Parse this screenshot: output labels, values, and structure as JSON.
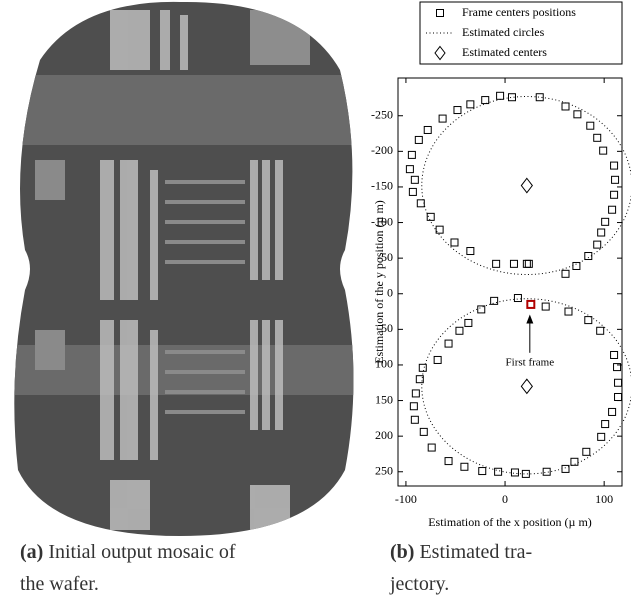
{
  "figure": {
    "caption_a": {
      "label": "(a)",
      "lines": [
        "Initial output mosaic of",
        "the wafer."
      ]
    },
    "caption_b": {
      "label": "(b)",
      "lines": [
        "Estimated tra-",
        "jectory."
      ]
    }
  },
  "chart_data": {
    "type": "scatter",
    "xlabel": "Estimation of the x position (µ m)",
    "ylabel": "Estimation of the y position (µ m)",
    "xlim": [
      -108,
      118
    ],
    "ylim": [
      -303,
      270
    ],
    "invert_y": true,
    "xticks": [
      -100,
      0,
      100
    ],
    "yticks": [
      -250,
      -200,
      -150,
      -100,
      -50,
      0,
      50,
      100,
      150,
      200,
      250
    ],
    "legend": "top",
    "series": [
      {
        "name": "Frame centers positions",
        "marker": "square",
        "color": "#000000",
        "highlight": {
          "index": 0,
          "color": "#b00000"
        },
        "x": [
          26,
          41,
          64,
          84,
          96,
          110,
          113,
          114,
          114,
          108,
          101,
          97,
          82,
          70,
          61,
          42,
          21,
          10,
          -7,
          -23,
          -41,
          -57,
          -74,
          -82,
          -91,
          -92,
          -90,
          -86,
          -83,
          -68,
          -57,
          -46,
          -37,
          -24,
          -11,
          13,
          61,
          72,
          84,
          93,
          97,
          101,
          108,
          110,
          111,
          110,
          99,
          93,
          86,
          73,
          61,
          35,
          7,
          -5,
          -20,
          -35,
          -48,
          -63,
          -78,
          -87,
          -94,
          -96,
          -91,
          -93,
          -85,
          -75,
          -66,
          -51,
          -35,
          -9,
          9,
          22,
          24
        ],
        "y": [
          15,
          18,
          25,
          37,
          52,
          86,
          103,
          125,
          145,
          166,
          183,
          201,
          222,
          236,
          246,
          250,
          253,
          251,
          250,
          249,
          243,
          235,
          216,
          194,
          177,
          158,
          140,
          120,
          104,
          93,
          70,
          52,
          41,
          22,
          10,
          6,
          -28,
          -39,
          -53,
          -69,
          -86,
          -101,
          -118,
          -139,
          -160,
          -180,
          -201,
          -219,
          -236,
          -252,
          -263,
          -276,
          -276,
          -278,
          -272,
          -266,
          -258,
          -246,
          -230,
          -216,
          -195,
          -175,
          -160,
          -143,
          -127,
          -108,
          -90,
          -72,
          -60,
          -42,
          -42,
          -42,
          -42
        ]
      },
      {
        "name": "Estimated circles",
        "style": "dotted",
        "color": "#000000",
        "circles": {
          "x": [
            22,
            22
          ],
          "y": [
            -152,
            130
          ],
          "rx": [
            106,
            106
          ],
          "ry": [
            125,
            123
          ]
        }
      },
      {
        "name": "Estimated centers",
        "marker": "diamond",
        "color": "#000000",
        "x": [
          22,
          22
        ],
        "y": [
          -152,
          130
        ]
      }
    ],
    "annotations": [
      {
        "text": "First frame",
        "x": 25,
        "y": 97,
        "arrow_to": [
          25,
          25
        ]
      }
    ]
  }
}
